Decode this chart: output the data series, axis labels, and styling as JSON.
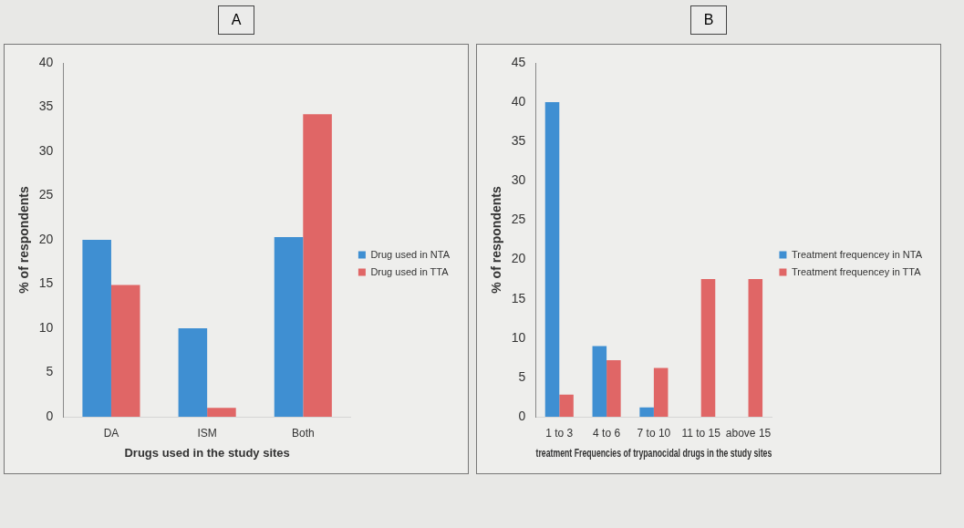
{
  "chart_data": [
    {
      "type": "bar",
      "title": "A",
      "xlabel": "Drugs used in the study sites",
      "ylabel": "% of respondents",
      "categories": [
        "DA",
        "ISM",
        "Both"
      ],
      "series": [
        {
          "name": "Drug used in NTA",
          "color": "#3f8fd2",
          "values": [
            20,
            10,
            20.3
          ]
        },
        {
          "name": "Drug used in TTA",
          "color": "#e06666",
          "values": [
            14.9,
            1,
            34.2
          ]
        }
      ],
      "ylim": [
        0,
        40
      ],
      "yticks": [
        0,
        5,
        10,
        15,
        20,
        25,
        30,
        35,
        40
      ],
      "grid": false,
      "legend": "right"
    },
    {
      "type": "bar",
      "title": "B",
      "xlabel": "treatment Frequencies of trypanocidal drugs in the study sites",
      "ylabel": "% of respondents",
      "categories": [
        "1 to 3",
        "4 to 6",
        "7 to 10",
        "11 to 15",
        "above 15"
      ],
      "series": [
        {
          "name": "Treatment frequencey in NTA",
          "color": "#3f8fd2",
          "values": [
            40,
            9,
            1.2,
            0,
            0
          ]
        },
        {
          "name": "Treatment frequencey in TTA",
          "color": "#e06666",
          "values": [
            2.8,
            7.2,
            6.2,
            17.5,
            17.5
          ]
        }
      ],
      "ylim": [
        0,
        45
      ],
      "yticks": [
        0,
        5,
        10,
        15,
        20,
        25,
        30,
        35,
        40,
        45
      ],
      "grid": false,
      "legend": "right"
    }
  ]
}
